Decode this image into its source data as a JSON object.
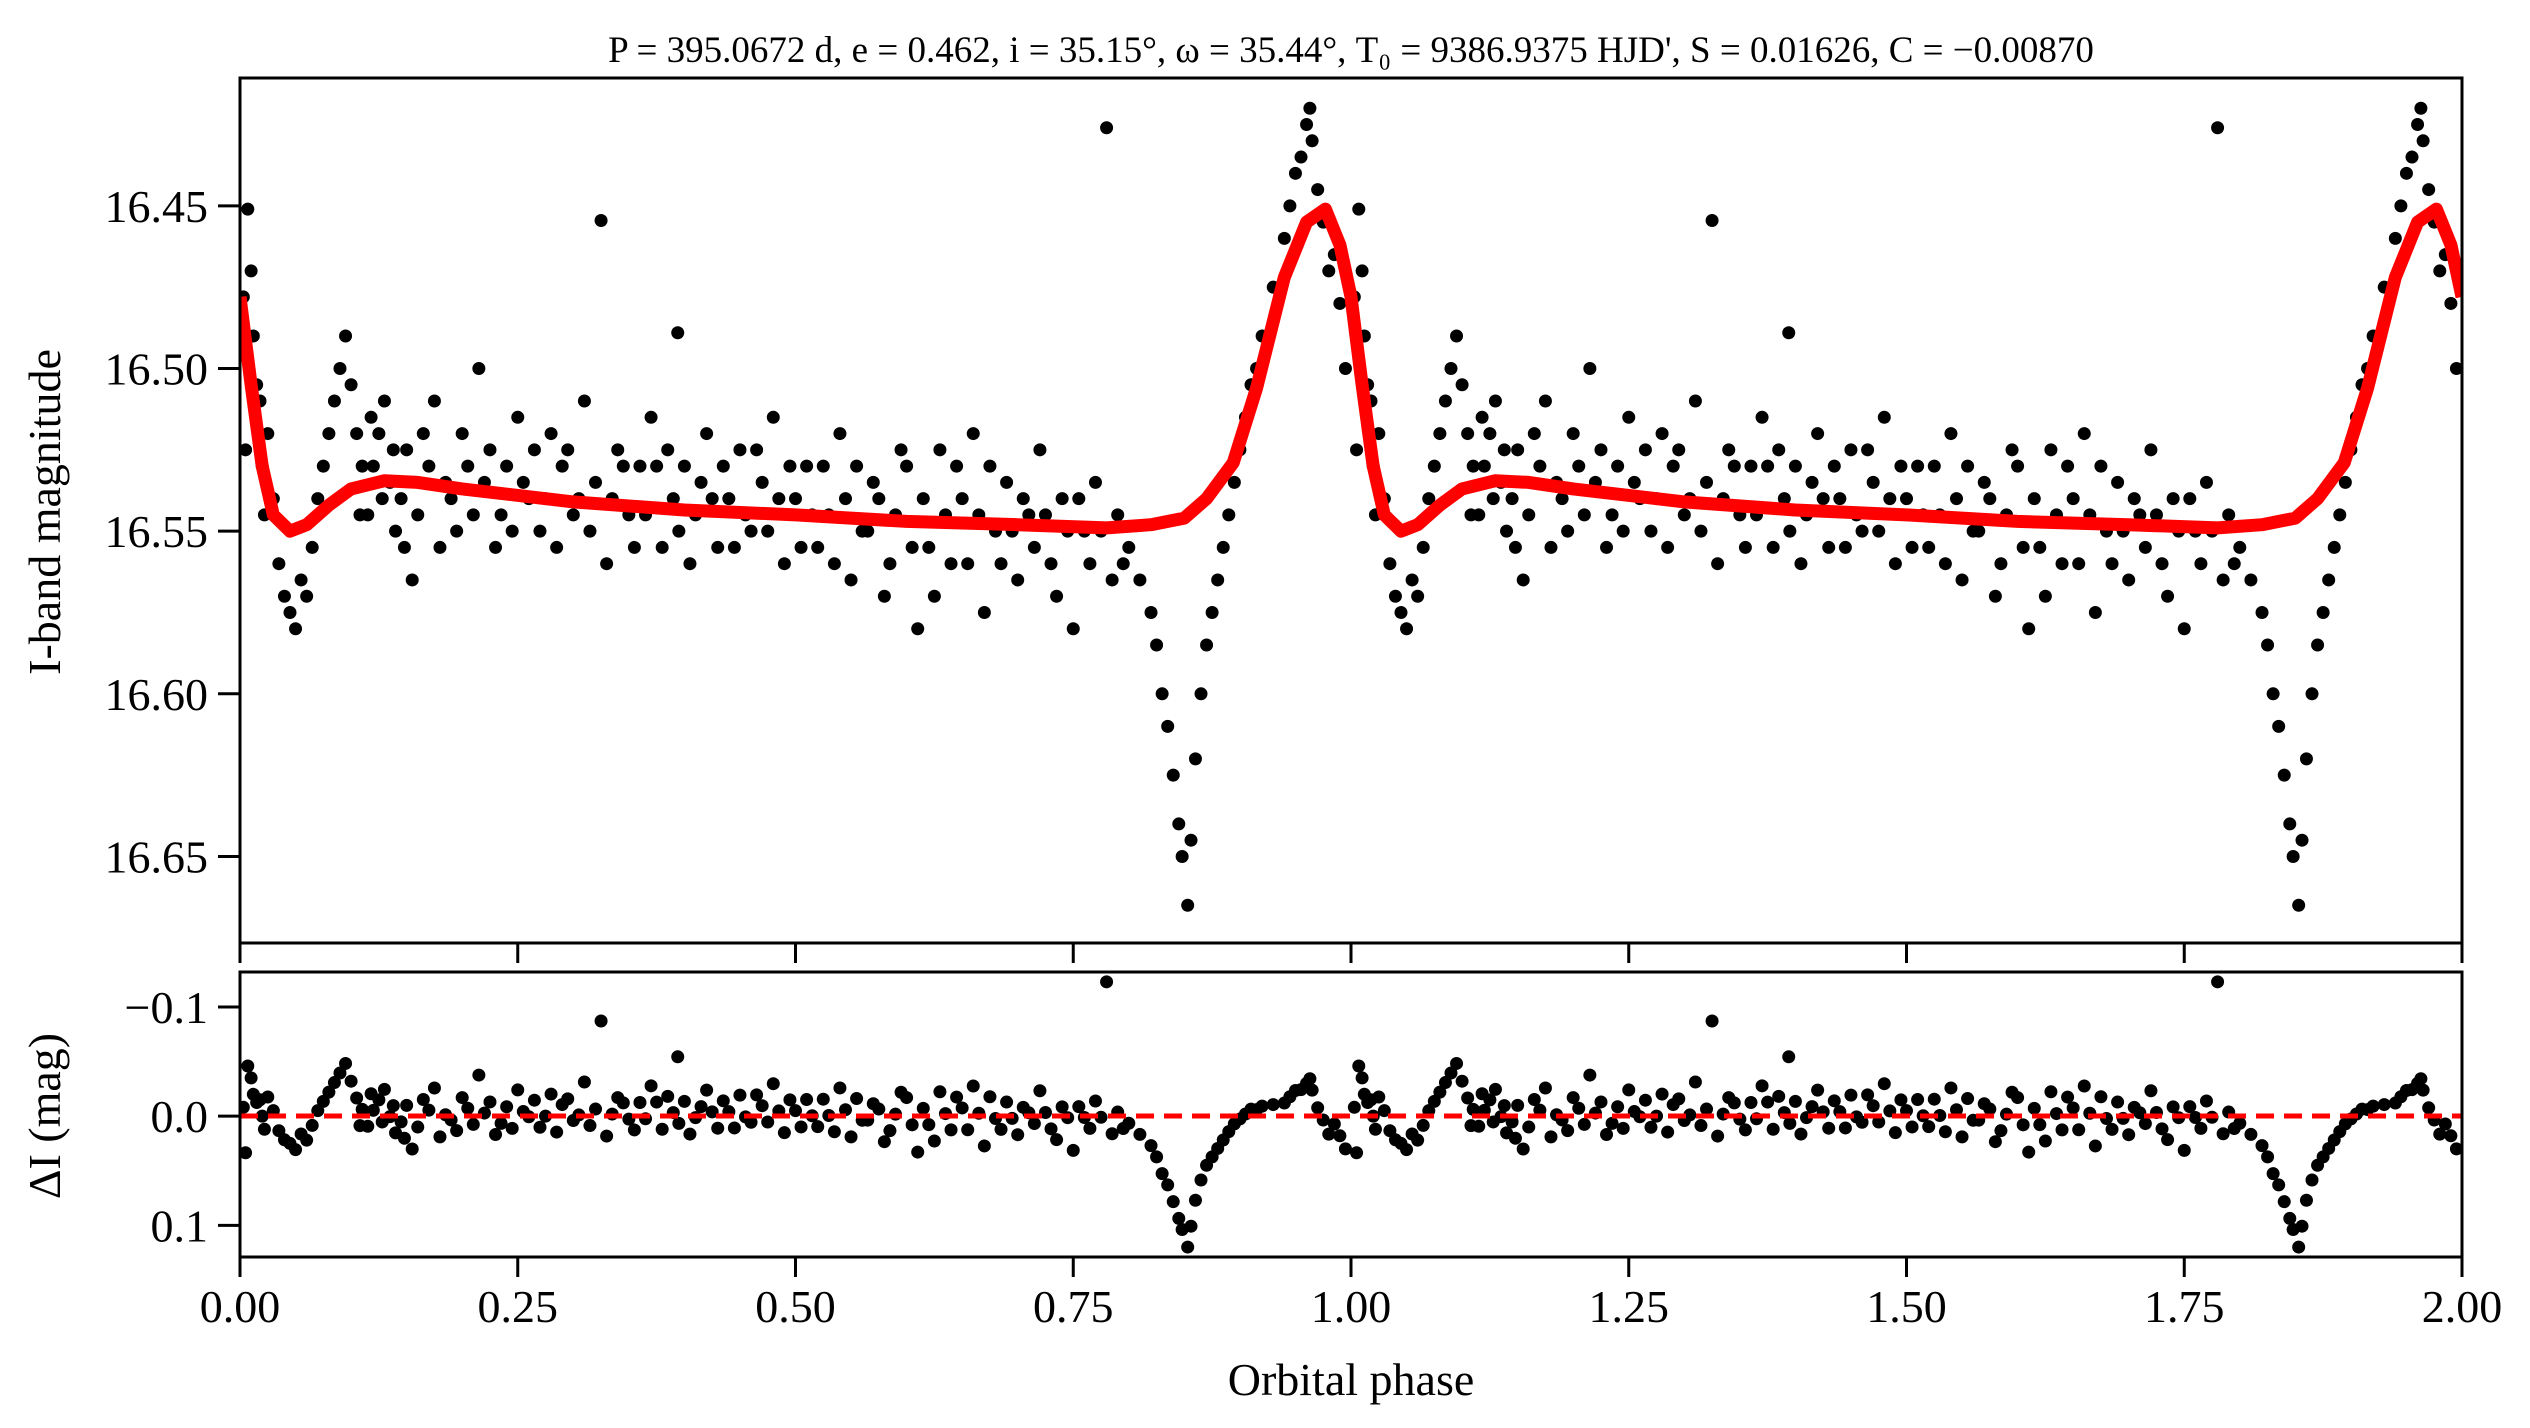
{
  "chart_data": [
    {
      "panel": "top",
      "type": "scatter",
      "title": "P = 395.0672 d, e = 0.462, i = 35.15°, ω = 35.44°, T₀ = 9386.9375 HJD', S = 0.01626, C = −0.00870",
      "xlabel": "",
      "ylabel": "I-band magnitude",
      "xlim": [
        0,
        2
      ],
      "ylim": [
        16.6766,
        16.4107
      ],
      "y_inverted": true,
      "xticks": [
        0,
        0.25,
        0.5,
        0.75,
        1.0,
        1.25,
        1.5,
        1.75,
        2.0
      ],
      "yticks": [
        16.45,
        16.5,
        16.55,
        16.6,
        16.65
      ],
      "ytick_labels": [
        "16.45",
        "16.50",
        "16.55",
        "16.60",
        "16.65"
      ],
      "grid": false,
      "series": [
        {
          "name": "observations",
          "color": "#000000",
          "folded": true
        },
        {
          "name": "model",
          "color": "#ff0000"
        }
      ],
      "model": [
        [
          0.0,
          16.478
        ],
        [
          0.01,
          16.505
        ],
        [
          0.02,
          16.53
        ],
        [
          0.03,
          16.545
        ],
        [
          0.045,
          16.55
        ],
        [
          0.06,
          16.548
        ],
        [
          0.08,
          16.542
        ],
        [
          0.1,
          16.537
        ],
        [
          0.13,
          16.5345
        ],
        [
          0.16,
          16.535
        ],
        [
          0.2,
          16.537
        ],
        [
          0.3,
          16.541
        ],
        [
          0.4,
          16.5435
        ],
        [
          0.5,
          16.545
        ],
        [
          0.6,
          16.547
        ],
        [
          0.7,
          16.548
        ],
        [
          0.78,
          16.549
        ],
        [
          0.82,
          16.548
        ],
        [
          0.85,
          16.546
        ],
        [
          0.87,
          16.54
        ],
        [
          0.894,
          16.529
        ],
        [
          0.915,
          16.506
        ],
        [
          0.94,
          16.472
        ],
        [
          0.96,
          16.455
        ],
        [
          0.977,
          16.451
        ],
        [
          0.99,
          16.462
        ],
        [
          1.0,
          16.478
        ]
      ],
      "observations": [
        [
          0.003,
          16.478
        ],
        [
          0.005,
          16.525
        ],
        [
          0.007,
          16.451
        ],
        [
          0.01,
          16.47
        ],
        [
          0.012,
          16.49
        ],
        [
          0.015,
          16.505
        ],
        [
          0.018,
          16.51
        ],
        [
          0.02,
          16.53
        ],
        [
          0.022,
          16.545
        ],
        [
          0.025,
          16.52
        ],
        [
          0.03,
          16.54
        ],
        [
          0.035,
          16.56
        ],
        [
          0.04,
          16.57
        ],
        [
          0.045,
          16.575
        ],
        [
          0.05,
          16.58
        ],
        [
          0.055,
          16.565
        ],
        [
          0.06,
          16.57
        ],
        [
          0.065,
          16.555
        ],
        [
          0.07,
          16.54
        ],
        [
          0.075,
          16.53
        ],
        [
          0.08,
          16.52
        ],
        [
          0.085,
          16.51
        ],
        [
          0.09,
          16.5
        ],
        [
          0.095,
          16.49
        ],
        [
          0.1,
          16.505
        ],
        [
          0.105,
          16.52
        ],
        [
          0.11,
          16.53
        ],
        [
          0.115,
          16.545
        ],
        [
          0.12,
          16.53
        ],
        [
          0.125,
          16.52
        ],
        [
          0.13,
          16.51
        ],
        [
          0.135,
          16.535
        ],
        [
          0.14,
          16.55
        ],
        [
          0.145,
          16.54
        ],
        [
          0.15,
          16.525
        ],
        [
          0.155,
          16.565
        ],
        [
          0.16,
          16.545
        ],
        [
          0.17,
          16.53
        ],
        [
          0.175,
          16.51
        ],
        [
          0.18,
          16.555
        ],
        [
          0.19,
          16.54
        ],
        [
          0.2,
          16.52
        ],
        [
          0.21,
          16.545
        ],
        [
          0.215,
          16.5
        ],
        [
          0.22,
          16.535
        ],
        [
          0.23,
          16.555
        ],
        [
          0.24,
          16.53
        ],
        [
          0.25,
          16.515
        ],
        [
          0.26,
          16.54
        ],
        [
          0.27,
          16.55
        ],
        [
          0.28,
          16.52
        ],
        [
          0.29,
          16.53
        ],
        [
          0.3,
          16.545
        ],
        [
          0.31,
          16.51
        ],
        [
          0.32,
          16.535
        ],
        [
          0.325,
          16.4545
        ],
        [
          0.33,
          16.56
        ],
        [
          0.34,
          16.525
        ],
        [
          0.35,
          16.545
        ],
        [
          0.36,
          16.53
        ],
        [
          0.37,
          16.515
        ],
        [
          0.38,
          16.555
        ],
        [
          0.39,
          16.54
        ],
        [
          0.394,
          16.489
        ],
        [
          0.4,
          16.53
        ],
        [
          0.41,
          16.545
        ],
        [
          0.42,
          16.52
        ],
        [
          0.43,
          16.555
        ],
        [
          0.44,
          16.54
        ],
        [
          0.45,
          16.525
        ],
        [
          0.46,
          16.55
        ],
        [
          0.47,
          16.535
        ],
        [
          0.48,
          16.515
        ],
        [
          0.49,
          16.56
        ],
        [
          0.5,
          16.54
        ],
        [
          0.51,
          16.53
        ],
        [
          0.52,
          16.555
        ],
        [
          0.53,
          16.545
        ],
        [
          0.54,
          16.52
        ],
        [
          0.55,
          16.565
        ],
        [
          0.56,
          16.55
        ],
        [
          0.57,
          16.535
        ],
        [
          0.58,
          16.57
        ],
        [
          0.59,
          16.545
        ],
        [
          0.6,
          16.53
        ],
        [
          0.61,
          16.58
        ],
        [
          0.62,
          16.555
        ],
        [
          0.63,
          16.525
        ],
        [
          0.64,
          16.56
        ],
        [
          0.65,
          16.54
        ],
        [
          0.66,
          16.52
        ],
        [
          0.67,
          16.575
        ],
        [
          0.68,
          16.55
        ],
        [
          0.69,
          16.535
        ],
        [
          0.7,
          16.565
        ],
        [
          0.71,
          16.545
        ],
        [
          0.72,
          16.525
        ],
        [
          0.73,
          16.56
        ],
        [
          0.74,
          16.54
        ],
        [
          0.75,
          16.58
        ],
        [
          0.76,
          16.55
        ],
        [
          0.77,
          16.535
        ],
        [
          0.78,
          16.426
        ],
        [
          0.785,
          16.565
        ],
        [
          0.79,
          16.545
        ],
        [
          0.8,
          16.555
        ],
        [
          0.81,
          16.565
        ],
        [
          0.82,
          16.575
        ],
        [
          0.825,
          16.585
        ],
        [
          0.83,
          16.6
        ],
        [
          0.835,
          16.61
        ],
        [
          0.84,
          16.625
        ],
        [
          0.845,
          16.64
        ],
        [
          0.848,
          16.65
        ],
        [
          0.853,
          16.665
        ],
        [
          0.856,
          16.645
        ],
        [
          0.86,
          16.62
        ],
        [
          0.865,
          16.6
        ],
        [
          0.87,
          16.585
        ],
        [
          0.875,
          16.575
        ],
        [
          0.88,
          16.565
        ],
        [
          0.885,
          16.555
        ],
        [
          0.89,
          16.545
        ],
        [
          0.895,
          16.535
        ],
        [
          0.9,
          16.525
        ],
        [
          0.905,
          16.515
        ],
        [
          0.91,
          16.505
        ],
        [
          0.915,
          16.5
        ],
        [
          0.92,
          16.49
        ],
        [
          0.93,
          16.475
        ],
        [
          0.94,
          16.46
        ],
        [
          0.945,
          16.45
        ],
        [
          0.95,
          16.44
        ],
        [
          0.955,
          16.435
        ],
        [
          0.96,
          16.425
        ],
        [
          0.963,
          16.42
        ],
        [
          0.965,
          16.43
        ],
        [
          0.97,
          16.445
        ],
        [
          0.975,
          16.455
        ],
        [
          0.98,
          16.47
        ],
        [
          0.985,
          16.465
        ],
        [
          0.99,
          16.48
        ],
        [
          0.995,
          16.5
        ],
        [
          0.108,
          16.545
        ],
        [
          0.118,
          16.515
        ],
        [
          0.128,
          16.54
        ],
        [
          0.138,
          16.525
        ],
        [
          0.148,
          16.555
        ],
        [
          0.165,
          16.52
        ],
        [
          0.185,
          16.535
        ],
        [
          0.195,
          16.55
        ],
        [
          0.205,
          16.53
        ],
        [
          0.225,
          16.525
        ],
        [
          0.235,
          16.545
        ],
        [
          0.245,
          16.55
        ],
        [
          0.255,
          16.535
        ],
        [
          0.265,
          16.525
        ],
        [
          0.275,
          16.54
        ],
        [
          0.285,
          16.555
        ],
        [
          0.295,
          16.525
        ],
        [
          0.305,
          16.54
        ],
        [
          0.315,
          16.55
        ],
        [
          0.335,
          16.54
        ],
        [
          0.345,
          16.53
        ],
        [
          0.355,
          16.555
        ],
        [
          0.365,
          16.545
        ],
        [
          0.375,
          16.53
        ],
        [
          0.385,
          16.525
        ],
        [
          0.395,
          16.55
        ],
        [
          0.405,
          16.56
        ],
        [
          0.415,
          16.535
        ],
        [
          0.425,
          16.54
        ],
        [
          0.435,
          16.53
        ],
        [
          0.445,
          16.555
        ],
        [
          0.455,
          16.545
        ],
        [
          0.465,
          16.525
        ],
        [
          0.475,
          16.55
        ],
        [
          0.485,
          16.54
        ],
        [
          0.495,
          16.53
        ],
        [
          0.505,
          16.555
        ],
        [
          0.515,
          16.545
        ],
        [
          0.525,
          16.53
        ],
        [
          0.535,
          16.56
        ],
        [
          0.545,
          16.54
        ],
        [
          0.555,
          16.53
        ],
        [
          0.565,
          16.55
        ],
        [
          0.575,
          16.54
        ],
        [
          0.585,
          16.56
        ],
        [
          0.595,
          16.525
        ],
        [
          0.605,
          16.555
        ],
        [
          0.615,
          16.54
        ],
        [
          0.625,
          16.57
        ],
        [
          0.635,
          16.545
        ],
        [
          0.645,
          16.53
        ],
        [
          0.655,
          16.56
        ],
        [
          0.665,
          16.545
        ],
        [
          0.675,
          16.53
        ],
        [
          0.685,
          16.56
        ],
        [
          0.695,
          16.55
        ],
        [
          0.705,
          16.54
        ],
        [
          0.715,
          16.555
        ],
        [
          0.725,
          16.545
        ],
        [
          0.735,
          16.57
        ],
        [
          0.745,
          16.55
        ],
        [
          0.755,
          16.54
        ],
        [
          0.765,
          16.56
        ],
        [
          0.775,
          16.55
        ],
        [
          0.795,
          16.56
        ]
      ]
    },
    {
      "panel": "bottom",
      "type": "scatter",
      "xlabel": "Orbital phase",
      "ylabel": "ΔI (mag)",
      "xlim": [
        0,
        2
      ],
      "ylim": [
        0.129,
        -0.132
      ],
      "y_inverted": true,
      "xticks": [
        0,
        0.25,
        0.5,
        0.75,
        1.0,
        1.25,
        1.5,
        1.75,
        2.0
      ],
      "xtick_labels": [
        "0.00",
        "0.25",
        "0.50",
        "0.75",
        "1.00",
        "1.25",
        "1.50",
        "1.75",
        "2.00"
      ],
      "yticks": [
        -0.1,
        0.0,
        0.1
      ],
      "ytick_labels": [
        "−0.1",
        "0.0",
        "0.1"
      ],
      "grid": false,
      "residuals": "observations minus model",
      "reference_line": {
        "value": 0.0,
        "style": "dashed",
        "color": "#ff0000"
      }
    }
  ]
}
